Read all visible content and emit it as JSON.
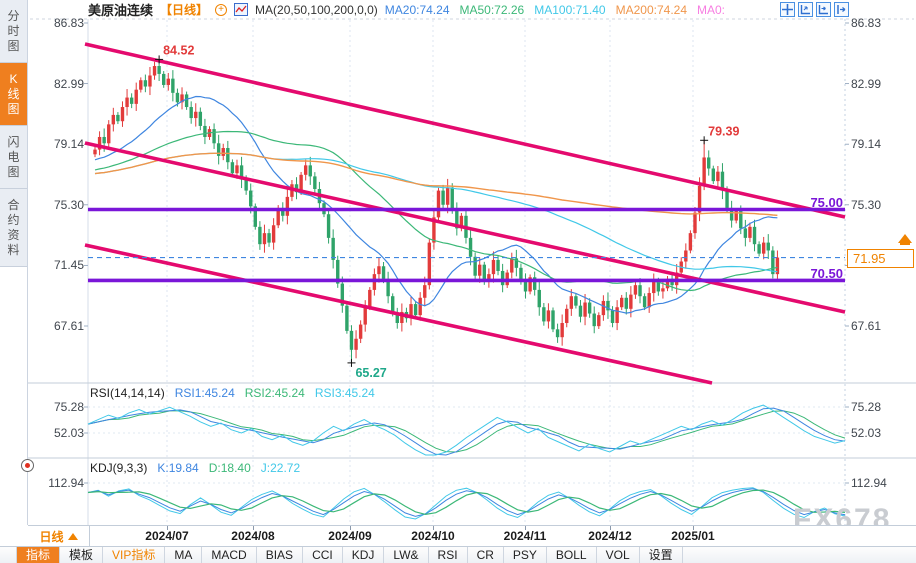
{
  "app": {
    "watermark": "FX678"
  },
  "colors": {
    "accent_orange": "#f08300",
    "candle_up": "#e23b3b",
    "candle_down": "#2fa369",
    "channel_magenta": "#e40a6e",
    "hline_purple": "#7a16d8",
    "ma20_blue": "#3f86e0",
    "ma50_green": "#3cb878",
    "ma100_cyan": "#41c8e8",
    "ma200_orange": "#f0964b",
    "ma0_pink": "#f77ee2",
    "dashed_price_blue": "#3f86e0",
    "marker_high_red": "#e23b3b",
    "marker_low_teal": "#1fa88a"
  },
  "sidebar": {
    "tabs": [
      {
        "label": "分时图",
        "active": false
      },
      {
        "label": "K线图",
        "active": true
      },
      {
        "label": "闪电图",
        "active": false
      },
      {
        "label": "合约资料",
        "active": false
      }
    ]
  },
  "header": {
    "symbol": "美原油连续",
    "period_tag": "【日线】",
    "ma_settings": "MA(20,50,100,200,0,0)",
    "ma_values": [
      {
        "text": "MA20:74.24",
        "color": "#3f86e0"
      },
      {
        "text": "MA50:72.26",
        "color": "#3cb878"
      },
      {
        "text": "MA100:71.40",
        "color": "#41c8e8"
      },
      {
        "text": "MA200:74.24",
        "color": "#f0964b"
      },
      {
        "text": "MA0:",
        "color": "#f77ee2"
      }
    ],
    "toolbar_icons": [
      "crosshair-icon",
      "scale-axis-icon",
      "shift-axis-icon",
      "pan-right-icon"
    ]
  },
  "axes": {
    "price_ticks_left": [
      "86.83",
      "82.99",
      "79.14",
      "75.30",
      "71.45",
      "67.61"
    ],
    "price_ticks_right": [
      "86.83",
      "82.99",
      "79.14",
      "75.30",
      "67.61"
    ],
    "rsi_ticks": [
      "75.28",
      "52.03"
    ],
    "kdj_ticks": [
      "112.94"
    ],
    "dates": [
      "2024/07",
      "2024/08",
      "2024/09",
      "2024/10",
      "2024/11",
      "2024/12",
      "2025/01"
    ]
  },
  "panes": {
    "rsi_header": [
      {
        "text": "RSI(14,14,14)",
        "color": "#222222"
      },
      {
        "text": "RSI1:45.24",
        "color": "#3f86e0"
      },
      {
        "text": "RSI2:45.24",
        "color": "#3cb878"
      },
      {
        "text": "RSI3:45.24",
        "color": "#41c8e8"
      }
    ],
    "kdj_header": [
      {
        "text": "KDJ(9,3,3)",
        "color": "#222222"
      },
      {
        "text": "K:19.84",
        "color": "#3f86e0"
      },
      {
        "text": "D:18.40",
        "color": "#3cb878"
      },
      {
        "text": "J:22.72",
        "color": "#41c8e8"
      }
    ]
  },
  "overlays": {
    "hlines": [
      {
        "label": "75.00",
        "value": 75.0
      },
      {
        "label": "70.50",
        "value": 70.5
      }
    ],
    "last_price": {
      "label": "71.95",
      "value": 71.95
    },
    "price_markers": [
      {
        "label": "84.52",
        "candle": 14,
        "kind": "high",
        "color": "#e23b3b"
      },
      {
        "label": "79.39",
        "candle": 133,
        "kind": "high",
        "color": "#e23b3b"
      },
      {
        "label": "65.27",
        "candle": 56,
        "kind": "low",
        "color": "#1fa88a"
      }
    ],
    "channel_lines": [
      [
        85,
        44,
        845,
        217
      ],
      [
        85,
        143,
        845,
        312
      ],
      [
        85,
        245,
        712,
        383
      ]
    ]
  },
  "period_selector": {
    "label": "日线"
  },
  "bottom_toolbar": {
    "buttons": [
      {
        "label": "指标",
        "state": "active"
      },
      {
        "label": "模板",
        "state": ""
      },
      {
        "label": "VIP指标",
        "state": "vip"
      },
      {
        "label": "MA",
        "state": ""
      },
      {
        "label": "MACD",
        "state": ""
      },
      {
        "label": "BIAS",
        "state": ""
      },
      {
        "label": "CCI",
        "state": ""
      },
      {
        "label": "KDJ",
        "state": ""
      },
      {
        "label": "LW&",
        "state": ""
      },
      {
        "label": "RSI",
        "state": ""
      },
      {
        "label": "CR",
        "state": ""
      },
      {
        "label": "PSY",
        "state": ""
      },
      {
        "label": "BOLL",
        "state": ""
      },
      {
        "label": "VOL",
        "state": ""
      },
      {
        "label": "设置",
        "state": ""
      }
    ]
  },
  "chart_data": {
    "type": "candlestick",
    "title": "美原油连续 日线 (WTI Crude Oil Continuous, Daily)",
    "x_axis_labels": [
      "2024/07",
      "2024/08",
      "2024/09",
      "2024/10",
      "2024/11",
      "2024/12",
      "2025/01"
    ],
    "price_axis_ticks": [
      86.83,
      82.99,
      79.14,
      75.3,
      71.45,
      67.61
    ],
    "key_levels": {
      "resistance": 75.0,
      "support": 70.5,
      "last": 71.95,
      "high_1": 84.52,
      "high_2": 79.39,
      "low_1": 65.27
    },
    "candles": {
      "first_open": 78.5,
      "closes": [
        78.8,
        79.6,
        79.2,
        80.4,
        81.0,
        80.6,
        81.5,
        82.1,
        81.7,
        82.6,
        83.2,
        82.8,
        83.5,
        84.1,
        83.6,
        82.9,
        83.3,
        82.4,
        81.8,
        82.3,
        81.5,
        80.8,
        81.2,
        80.3,
        79.6,
        80.1,
        79.2,
        78.4,
        78.9,
        78.0,
        77.3,
        77.8,
        76.9,
        76.2,
        75.2,
        73.9,
        72.8,
        73.5,
        72.9,
        74.0,
        75.1,
        74.6,
        75.8,
        76.6,
        76.1,
        77.2,
        77.8,
        77.1,
        76.3,
        75.4,
        74.7,
        73.2,
        71.8,
        70.3,
        68.9,
        67.3,
        66.1,
        66.8,
        67.7,
        68.8,
        69.9,
        70.9,
        71.4,
        70.6,
        69.5,
        68.4,
        67.8,
        68.5,
        68.1,
        69.0,
        68.3,
        69.4,
        70.2,
        72.9,
        74.5,
        76.2,
        75.3,
        76.4,
        75.0,
        73.8,
        74.6,
        73.2,
        72.0,
        70.8,
        71.5,
        70.4,
        70.9,
        71.8,
        71.1,
        70.2,
        71.0,
        71.9,
        71.3,
        70.5,
        69.8,
        70.7,
        69.9,
        68.8,
        67.9,
        68.6,
        67.4,
        66.9,
        67.8,
        68.7,
        69.5,
        68.9,
        68.2,
        69.1,
        68.4,
        67.6,
        68.3,
        69.2,
        68.6,
        67.8,
        68.8,
        69.4,
        68.7,
        69.6,
        70.2,
        69.5,
        68.8,
        69.7,
        70.4,
        69.8,
        70.0,
        70.6,
        70.2,
        71.0,
        71.7,
        72.4,
        73.5,
        74.8,
        76.5,
        78.3,
        77.6,
        76.8,
        77.4,
        76.2,
        75.1,
        74.3,
        74.9,
        73.8,
        73.2,
        73.9,
        72.8,
        72.2,
        72.9,
        72.4,
        70.9,
        71.95
      ],
      "overrides": {
        "14": {
          "h": 84.52
        },
        "56": {
          "l": 65.27
        },
        "133": {
          "h": 79.39
        }
      }
    },
    "indicators": {
      "rsi": {
        "name": "RSI(14,14,14)",
        "current": {
          "RSI1": 45.24,
          "RSI2": 45.24,
          "RSI3": 45.24
        },
        "ticks": [
          75.28,
          52.03
        ],
        "values": [
          60,
          64,
          68,
          65,
          70,
          73,
          69,
          72,
          75,
          71,
          67,
          62,
          58,
          61,
          55,
          52,
          56,
          49,
          46,
          50,
          44,
          41,
          45,
          52,
          58,
          54,
          60,
          64,
          59,
          55,
          50,
          43,
          37,
          32,
          30,
          35,
          41,
          48,
          54,
          60,
          66,
          62,
          57,
          52,
          56,
          48,
          44,
          40,
          36,
          42,
          38,
          35,
          40,
          45,
          42,
          46,
          50,
          54,
          58,
          55,
          60,
          63,
          59,
          64,
          70,
          74,
          77,
          72,
          66,
          60,
          54,
          49,
          46,
          43,
          45.24
        ]
      },
      "kdj": {
        "name": "KDJ(9,3,3)",
        "current": {
          "K": 19.84,
          "D": 18.4,
          "J": 22.72
        },
        "ticks": [
          112.94
        ],
        "values": [
          85,
          90,
          78,
          88,
          92,
          80,
          70,
          55,
          40,
          30,
          45,
          60,
          50,
          35,
          25,
          38,
          55,
          70,
          82,
          75,
          60,
          45,
          30,
          20,
          35,
          55,
          75,
          88,
          80,
          65,
          45,
          25,
          15,
          22,
          40,
          62,
          80,
          90,
          85,
          70,
          50,
          32,
          20,
          30,
          48,
          66,
          78,
          70,
          55,
          38,
          25,
          35,
          52,
          68,
          80,
          88,
          78,
          62,
          45,
          30,
          42,
          60,
          75,
          85,
          92,
          96,
          88,
          70,
          50,
          32,
          20,
          28,
          35,
          25,
          19.84
        ]
      }
    }
  }
}
